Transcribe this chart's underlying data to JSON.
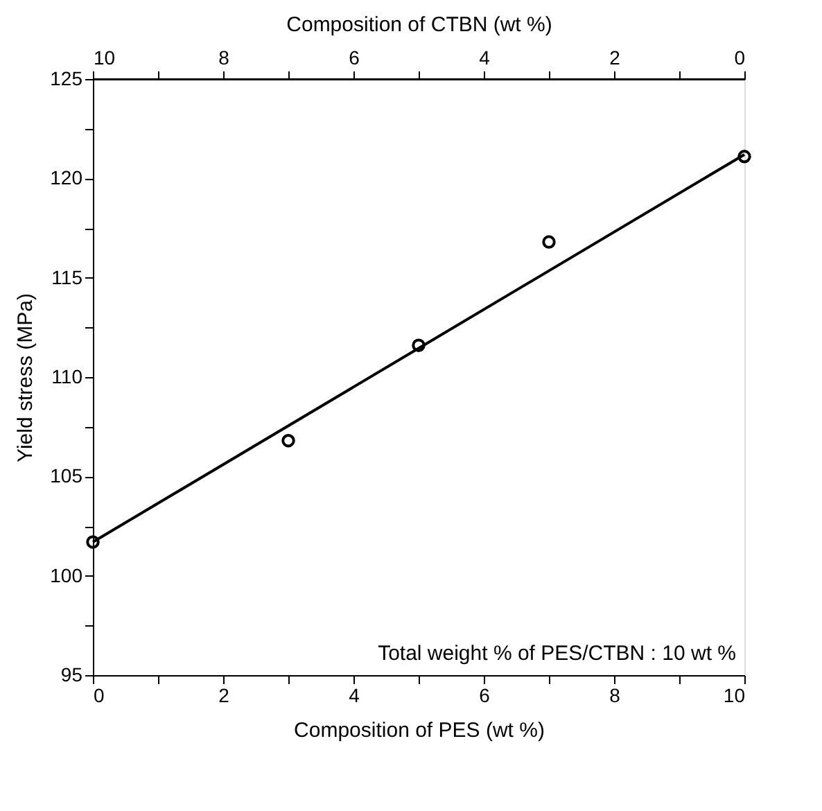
{
  "chart_data": {
    "type": "scatter",
    "xlabel": "Composition of PES (wt %)",
    "ylabel": "Yield stress (MPa)",
    "x2label": "Composition of CTBN (wt %)",
    "xlim": [
      0,
      10
    ],
    "xticks": [
      0,
      {
        "value": 1,
        "label": null
      },
      2,
      {
        "value": 3,
        "label": null
      },
      4,
      {
        "value": 5,
        "label": null
      },
      6,
      {
        "value": 7,
        "label": null
      },
      8,
      {
        "value": 9,
        "label": null
      },
      10
    ],
    "x2lim": [
      10,
      0
    ],
    "x2ticks": [
      10,
      {
        "value": 9,
        "label": null
      },
      8,
      {
        "value": 7,
        "label": null
      },
      6,
      {
        "value": 5,
        "label": null
      },
      4,
      {
        "value": 3,
        "label": null
      },
      2,
      {
        "value": 1,
        "label": null
      },
      0
    ],
    "ylim": [
      95,
      125
    ],
    "yticks": [
      95,
      {
        "value": 97.5,
        "label": null
      },
      100,
      {
        "value": 102.5,
        "label": null
      },
      105,
      {
        "value": 107.5,
        "label": null
      },
      110,
      {
        "value": 112.5,
        "label": null
      },
      115,
      {
        "value": 117.5,
        "label": null
      },
      120,
      {
        "value": 122.5,
        "label": null
      },
      125
    ],
    "grid": false,
    "series": [
      {
        "type": "scatter",
        "color": "#000000",
        "marker": "circle",
        "x": [
          0,
          3,
          5,
          7,
          10
        ],
        "values": [
          101.7,
          106.8,
          111.6,
          116.8,
          121.1
        ]
      },
      {
        "type": "line",
        "color": "#000000",
        "line_style": "solid",
        "x": [
          0,
          10
        ],
        "values": [
          101.7,
          121.2
        ]
      }
    ],
    "annotations": [
      "Total weight % of PES/CTBN : 10 wt %"
    ]
  }
}
